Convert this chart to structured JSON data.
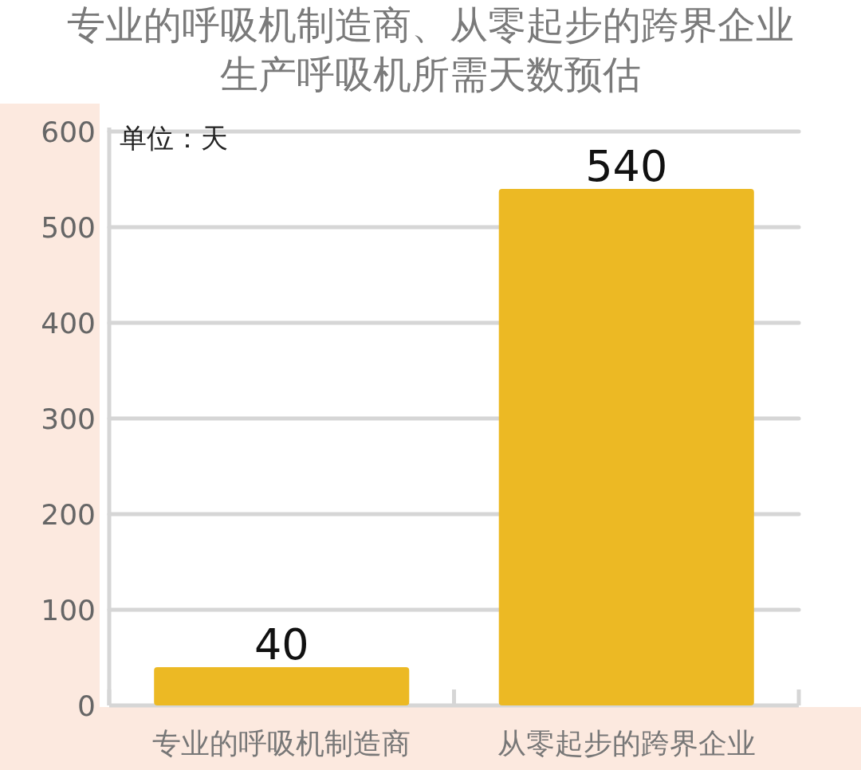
{
  "chart_data": {
    "type": "bar",
    "title": "专业的呼吸机制造商、从零起步的跨界企业生产呼吸机所需天数预估",
    "categories": [
      "专业的呼吸机制造商",
      "从零起步的跨界企业"
    ],
    "values": [
      40,
      540
    ],
    "color": "#ecb924",
    "ylim": [
      0,
      600
    ],
    "yticks": [
      0,
      100,
      200,
      300,
      400,
      500,
      600
    ],
    "grid": "y",
    "data_labels": true,
    "annotations": [
      "单位：天"
    ]
  }
}
